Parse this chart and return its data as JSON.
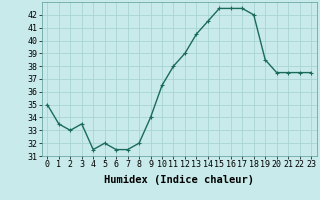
{
  "x": [
    0,
    1,
    2,
    3,
    4,
    5,
    6,
    7,
    8,
    9,
    10,
    11,
    12,
    13,
    14,
    15,
    16,
    17,
    18,
    19,
    20,
    21,
    22,
    23
  ],
  "y": [
    35,
    33.5,
    33,
    33.5,
    31.5,
    32,
    31.5,
    31.5,
    32,
    34,
    36.5,
    38,
    39,
    40.5,
    41.5,
    42.5,
    42.5,
    42.5,
    42,
    38.5,
    37.5,
    37.5,
    37.5,
    37.5
  ],
  "line_color": "#1a6b5a",
  "marker": "+",
  "marker_size": 3,
  "background_color": "#c8eaea",
  "grid_color": "#aad4d4",
  "xlabel": "Humidex (Indice chaleur)",
  "xlabel_fontsize": 7.5,
  "xlim": [
    -0.5,
    23.5
  ],
  "ylim": [
    31,
    43
  ],
  "yticks": [
    31,
    32,
    33,
    34,
    35,
    36,
    37,
    38,
    39,
    40,
    41,
    42
  ],
  "xticks": [
    0,
    1,
    2,
    3,
    4,
    5,
    6,
    7,
    8,
    9,
    10,
    11,
    12,
    13,
    14,
    15,
    16,
    17,
    18,
    19,
    20,
    21,
    22,
    23
  ],
  "tick_fontsize": 6,
  "line_width": 1.0
}
